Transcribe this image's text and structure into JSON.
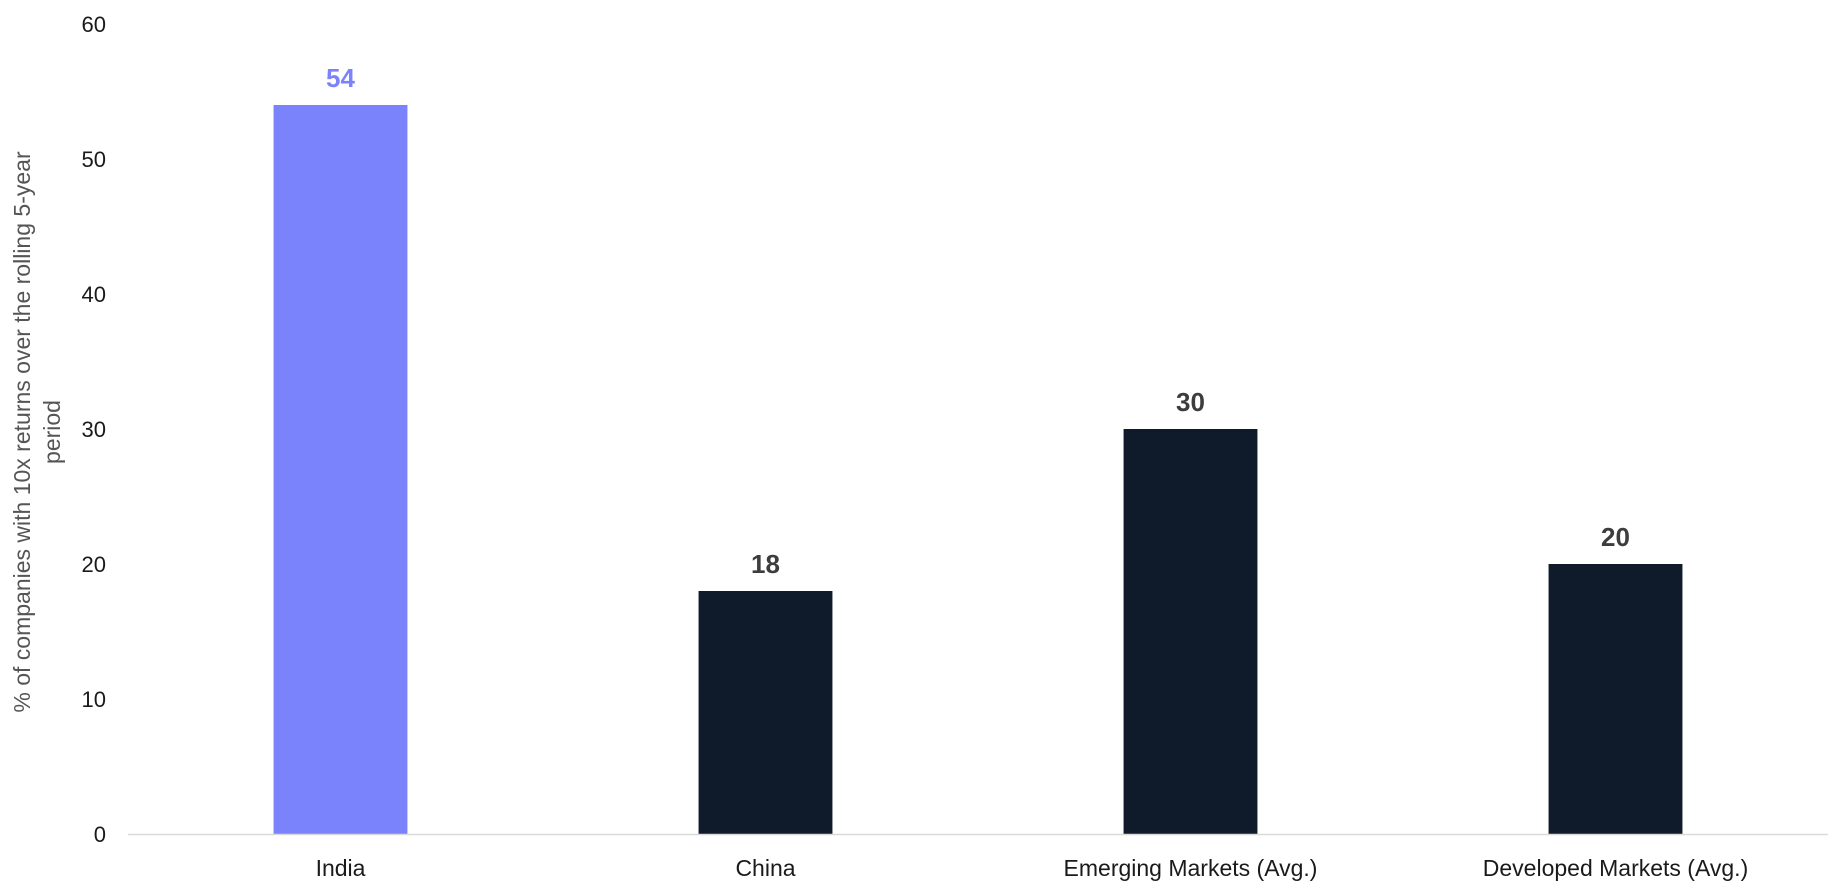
{
  "chart_data": {
    "type": "bar",
    "categories": [
      "India",
      "China",
      "Emerging Markets (Avg.)",
      "Developed Markets (Avg.)"
    ],
    "values": [
      54,
      18,
      30,
      20
    ],
    "data_labels": [
      "54",
      "18",
      "30",
      "20"
    ],
    "ylabel_lines": [
      "% of companies with 10x returns over the rolling 5-year",
      "period"
    ],
    "ylim": [
      0,
      60
    ],
    "yticks": [
      0,
      10,
      20,
      30,
      40,
      50,
      60
    ],
    "grid": false,
    "legend": "none",
    "colors": {
      "highlight_bar": "#7b83fc",
      "highlight_label": "#7b83fc",
      "default_bar": "#0f1b2a",
      "default_label": "#3d3d3d",
      "baseline": "#d9d9d9"
    },
    "highlight_index": 0
  }
}
